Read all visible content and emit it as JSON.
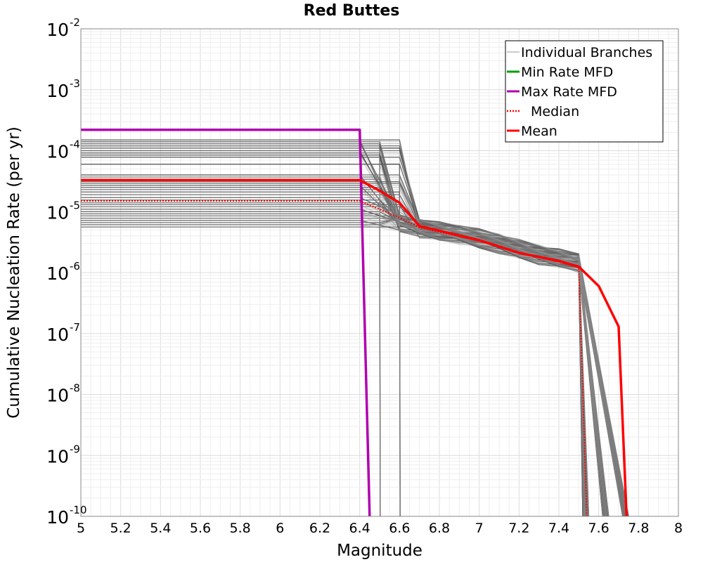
{
  "chart_data": {
    "type": "line",
    "title": "Red Buttes",
    "xlabel": "Magnitude",
    "ylabel": "Cumulative Nucleation Rate (per yr)",
    "xlim": [
      5,
      8
    ],
    "ylim": [
      1e-10,
      0.01
    ],
    "yscale": "log",
    "grid": true,
    "legend_position": "top-right",
    "x_ticks": [
      "5",
      "5.2",
      "5.4",
      "5.6",
      "5.8",
      "6",
      "6.2",
      "6.4",
      "6.6",
      "6.8",
      "7",
      "7.2",
      "7.4",
      "7.6",
      "7.8",
      "8"
    ],
    "y_ticks": [
      {
        "base": "10",
        "exp": "-2",
        "value": 0.01
      },
      {
        "base": "10",
        "exp": "-3",
        "value": 0.001
      },
      {
        "base": "10",
        "exp": "-4",
        "value": 0.0001
      },
      {
        "base": "10",
        "exp": "-5",
        "value": 1e-05
      },
      {
        "base": "10",
        "exp": "-6",
        "value": 1e-06
      },
      {
        "base": "10",
        "exp": "-7",
        "value": 1e-07
      },
      {
        "base": "10",
        "exp": "-8",
        "value": 1e-08
      },
      {
        "base": "10",
        "exp": "-9",
        "value": 1e-09
      },
      {
        "base": "10",
        "exp": "-10",
        "value": 1e-10
      }
    ],
    "series": [
      {
        "name": "Max Rate MFD",
        "color": "#b000b0",
        "style": "solid",
        "x": [
          5.0,
          6.4,
          6.45
        ],
        "y": [
          0.00022,
          0.00022,
          1e-10
        ]
      },
      {
        "name": "Median",
        "color": "#ff0000",
        "style": "dotted",
        "x": [
          5.0,
          6.4,
          6.6,
          6.7,
          7.0,
          7.2,
          7.4,
          7.5,
          7.54
        ],
        "y": [
          1.5e-05,
          1.5e-05,
          8e-06,
          5.5e-06,
          3.3e-06,
          2.1e-06,
          1.5e-06,
          1.2e-06,
          1e-10
        ]
      },
      {
        "name": "Mean",
        "color": "#ff0000",
        "style": "solid",
        "x": [
          5.0,
          6.4,
          6.5,
          6.6,
          6.7,
          7.0,
          7.2,
          7.4,
          7.5,
          7.6,
          7.7,
          7.74
        ],
        "y": [
          3.3e-05,
          3.3e-05,
          2.2e-05,
          1.4e-05,
          5.8e-06,
          3.4e-06,
          2.1e-06,
          1.55e-06,
          1.25e-06,
          6e-07,
          1.3e-07,
          1e-10
        ]
      }
    ],
    "legend": [
      {
        "label": "Individual Branches",
        "color": "#999999",
        "style": "thin"
      },
      {
        "label": "Min Rate MFD",
        "color": "#00a000",
        "style": "solid"
      },
      {
        "label": "Max Rate MFD",
        "color": "#b000b0",
        "style": "solid"
      },
      {
        "label": "Median",
        "color": "#ff0000",
        "style": "dotted"
      },
      {
        "label": "Mean",
        "color": "#ff0000",
        "style": "solid"
      }
    ],
    "branches": {
      "color": "#555555",
      "low_mag_rates": [
        0.00015,
        0.00014,
        0.00013,
        0.00012,
        0.00011,
        0.0001,
        9.2e-05,
        8.5e-05,
        7.8e-05,
        6e-05,
        4e-05,
        3.7e-05,
        3.4e-05,
        3.1e-05,
        2.9e-05,
        2.7e-05,
        2.5e-05,
        2.3e-05,
        2.1e-05,
        1.9e-05,
        1.7e-05,
        1.55e-05,
        1.4e-05,
        1.3e-05,
        1.2e-05,
        1.1e-05,
        1e-05,
        9.2e-06,
        8.5e-06,
        7.8e-06,
        7.2e-06,
        6.6e-06,
        6.1e-06,
        5.6e-06
      ],
      "first_drop_mags": [
        6.4,
        6.5,
        6.5,
        6.6,
        6.6
      ],
      "upper_drop_mags": [
        7.5,
        7.6,
        7.7
      ]
    }
  }
}
